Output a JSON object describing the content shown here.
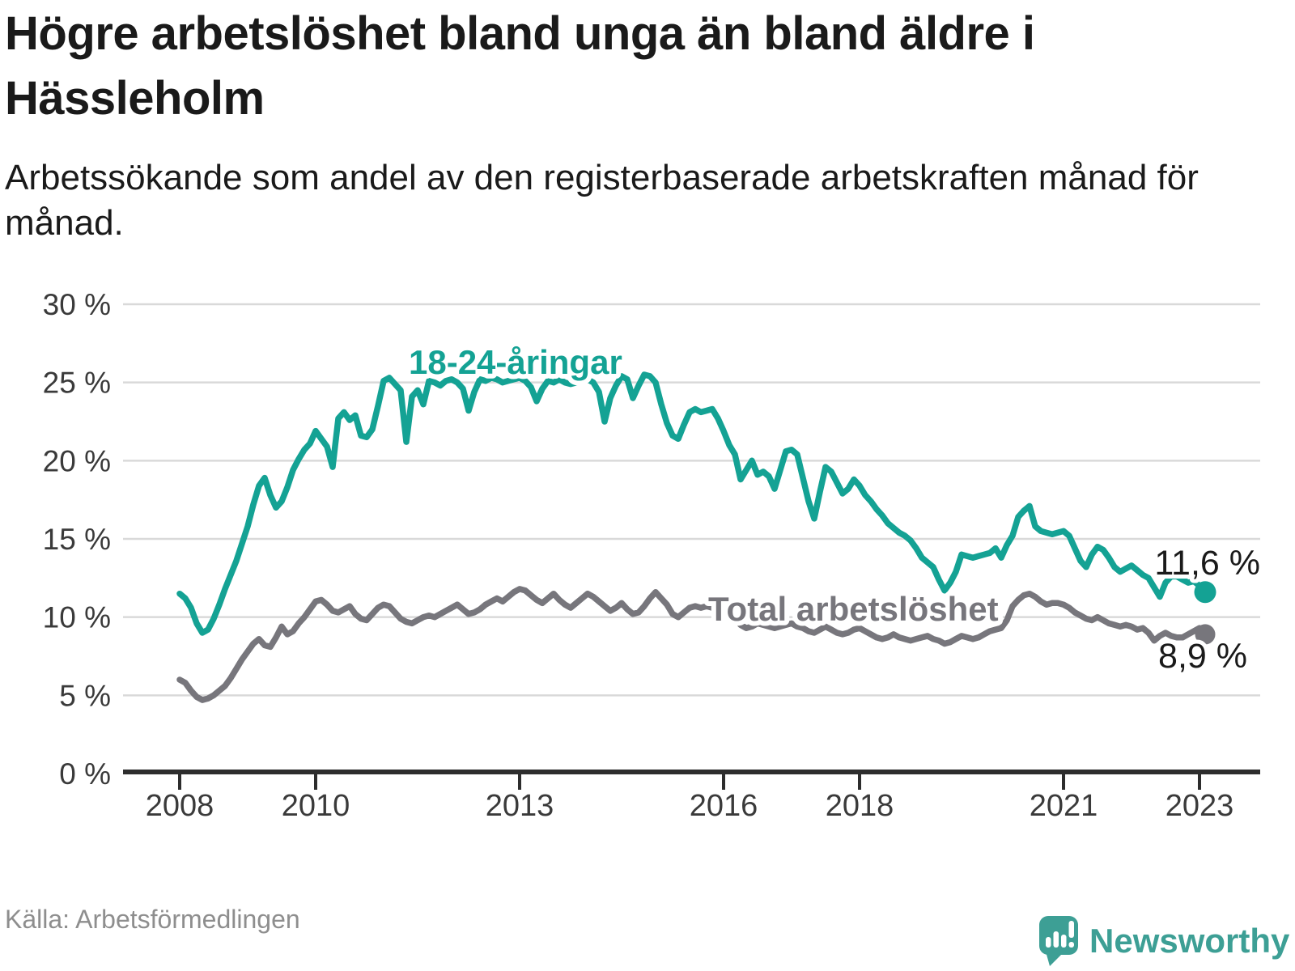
{
  "title": "Högre arbetslöshet bland unga än bland äldre i Hässleholm",
  "subtitle": "Arbetssökande som andel av den registerbaserade arbetskraften månad för månad.",
  "source": "Källa: Arbetsförmedlingen",
  "logo": {
    "text": "Newsworthy",
    "color": "#3d9f95",
    "icon": "speech-bubble-bar-chart-icon"
  },
  "colors": {
    "young": "#14a294",
    "total": "#77767c",
    "grid": "#d9d9d9",
    "axis": "#2d2d2d",
    "tick_text": "#3a3a3a",
    "value_text": "#1a1a1a"
  },
  "chart_data": {
    "type": "line",
    "title": "Högre arbetslöshet bland unga än bland äldre i Hässleholm",
    "subtitle": "Arbetssökande som andel av den registerbaserade arbetskraften månad för månad.",
    "unit": "%",
    "x_start_year": 2008,
    "x_start_month": 1,
    "x_end_year": 2023,
    "x_end_month": 2,
    "ylim": [
      0,
      30
    ],
    "y_tick_values": [
      0,
      5,
      10,
      15,
      20,
      25,
      30
    ],
    "y_tick_labels": [
      "0 %",
      "5 %",
      "10 %",
      "15 %",
      "20 %",
      "25 %",
      "30 %"
    ],
    "x_tick_years": [
      2008,
      2010,
      2013,
      2016,
      2018,
      2021,
      2023
    ],
    "grid": true,
    "legend_position": "inline-labels",
    "series": [
      {
        "name": "18-24-åringar",
        "color": "#14a294",
        "end_label": "11,6 %",
        "end_value": 11.6,
        "values": [
          11.5,
          11.2,
          10.6,
          9.6,
          9.0,
          9.2,
          9.9,
          10.8,
          11.8,
          12.7,
          13.6,
          14.7,
          15.8,
          17.2,
          18.4,
          18.9,
          17.8,
          17.0,
          17.4,
          18.3,
          19.4,
          20.1,
          20.7,
          21.1,
          21.9,
          21.4,
          20.9,
          19.6,
          22.7,
          23.1,
          22.6,
          22.9,
          21.6,
          21.5,
          22.0,
          23.5,
          25.1,
          25.3,
          24.9,
          24.5,
          21.2,
          24.1,
          24.5,
          23.6,
          25.1,
          25.0,
          24.8,
          25.1,
          25.2,
          25.0,
          24.6,
          23.2,
          24.4,
          25.2,
          25.1,
          25.3,
          25.2,
          25.0,
          25.1,
          25.2,
          25.3,
          25.1,
          24.7,
          23.8,
          24.6,
          25.1,
          25.0,
          25.2,
          25.0,
          24.9,
          25.0,
          25.1,
          25.2,
          25.0,
          24.4,
          22.5,
          24.0,
          24.8,
          25.4,
          25.2,
          24.0,
          24.8,
          25.5,
          25.4,
          25.0,
          23.6,
          22.4,
          21.6,
          21.4,
          22.3,
          23.1,
          23.3,
          23.1,
          23.2,
          23.3,
          22.7,
          21.9,
          21.0,
          20.4,
          18.8,
          19.4,
          20.0,
          19.1,
          19.3,
          19.0,
          18.2,
          19.4,
          20.6,
          20.7,
          20.4,
          18.9,
          17.4,
          16.3,
          18.0,
          19.6,
          19.3,
          18.6,
          17.9,
          18.2,
          18.8,
          18.4,
          17.8,
          17.4,
          16.9,
          16.5,
          16.0,
          15.7,
          15.4,
          15.2,
          14.9,
          14.4,
          13.8,
          13.5,
          13.2,
          12.4,
          11.7,
          12.2,
          12.9,
          14.0,
          13.9,
          13.8,
          13.9,
          14.0,
          14.1,
          14.4,
          13.8,
          14.6,
          15.2,
          16.4,
          16.8,
          17.1,
          15.8,
          15.5,
          15.4,
          15.3,
          15.4,
          15.5,
          15.2,
          14.4,
          13.6,
          13.2,
          14.0,
          14.5,
          14.3,
          13.8,
          13.2,
          12.9,
          13.1,
          13.3,
          13.0,
          12.7,
          12.5,
          11.9,
          11.3,
          12.2,
          12.6,
          12.6,
          12.4,
          12.2,
          12.3,
          12.0,
          11.6
        ]
      },
      {
        "name": "Total arbetslöshet",
        "color": "#77767c",
        "end_label": "8,9 %",
        "end_value": 8.9,
        "values": [
          6.0,
          5.8,
          5.3,
          4.9,
          4.7,
          4.8,
          5.0,
          5.3,
          5.6,
          6.1,
          6.7,
          7.3,
          7.8,
          8.3,
          8.6,
          8.2,
          8.1,
          8.7,
          9.4,
          8.9,
          9.1,
          9.6,
          10.0,
          10.5,
          11.0,
          11.1,
          10.8,
          10.4,
          10.3,
          10.5,
          10.7,
          10.2,
          9.9,
          9.8,
          10.2,
          10.6,
          10.8,
          10.7,
          10.3,
          9.9,
          9.7,
          9.6,
          9.8,
          10.0,
          10.1,
          10.0,
          10.2,
          10.4,
          10.6,
          10.8,
          10.5,
          10.2,
          10.3,
          10.5,
          10.8,
          11.0,
          11.2,
          11.0,
          11.3,
          11.6,
          11.8,
          11.7,
          11.4,
          11.1,
          10.9,
          11.2,
          11.5,
          11.1,
          10.8,
          10.6,
          10.9,
          11.2,
          11.5,
          11.3,
          11.0,
          10.7,
          10.4,
          10.6,
          10.9,
          10.5,
          10.2,
          10.3,
          10.7,
          11.2,
          11.6,
          11.2,
          10.8,
          10.2,
          10.0,
          10.3,
          10.6,
          10.7,
          10.6,
          10.7,
          10.6,
          10.6,
          10.6,
          10.3,
          9.9,
          9.5,
          9.3,
          9.4,
          9.6,
          9.5,
          9.4,
          9.3,
          9.4,
          9.5,
          9.6,
          9.4,
          9.3,
          9.1,
          9.0,
          9.2,
          9.4,
          9.2,
          9.0,
          8.9,
          9.0,
          9.2,
          9.3,
          9.1,
          8.9,
          8.7,
          8.6,
          8.7,
          8.9,
          8.7,
          8.6,
          8.5,
          8.6,
          8.7,
          8.8,
          8.6,
          8.5,
          8.3,
          8.4,
          8.6,
          8.8,
          8.7,
          8.6,
          8.7,
          8.9,
          9.1,
          9.2,
          9.3,
          9.8,
          10.7,
          11.1,
          11.4,
          11.5,
          11.3,
          11.0,
          10.8,
          10.9,
          10.9,
          10.8,
          10.6,
          10.3,
          10.1,
          9.9,
          9.8,
          10.0,
          9.8,
          9.6,
          9.5,
          9.4,
          9.5,
          9.4,
          9.2,
          9.3,
          9.0,
          8.5,
          8.8,
          9.0,
          8.8,
          8.7,
          8.7,
          8.9,
          9.1,
          9.3,
          8.9
        ]
      }
    ]
  }
}
